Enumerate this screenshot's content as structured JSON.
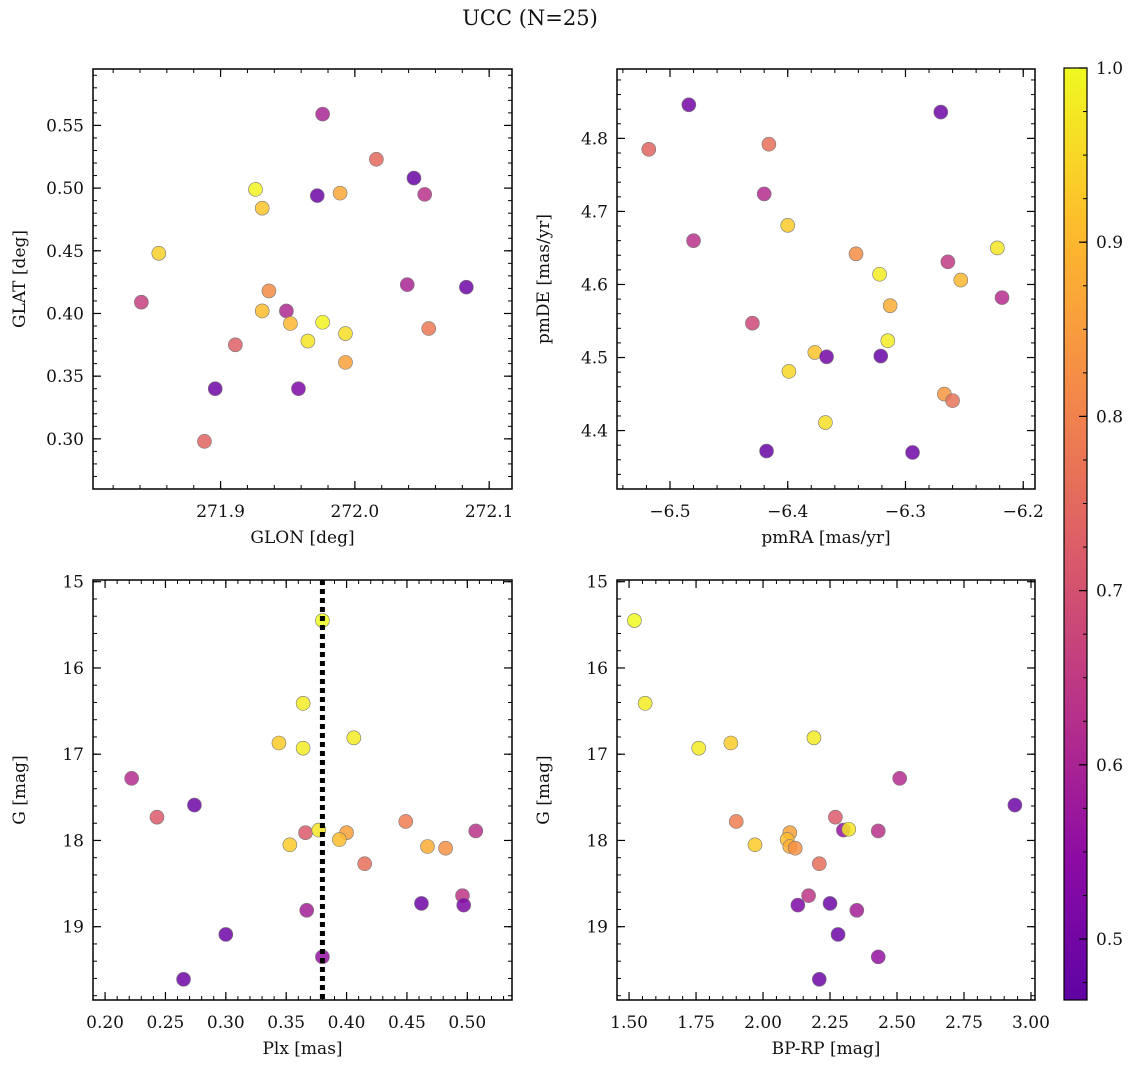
{
  "title": "UCC (N=25)",
  "colorbar": {
    "range": [
      0.465,
      1.0
    ],
    "ticks": [
      0.5,
      0.6,
      0.7,
      0.8,
      0.9,
      1.0
    ],
    "tick_labels": [
      "0.5",
      "0.6",
      "0.7",
      "0.8",
      "0.9",
      "1.0"
    ],
    "colormap": "plasma"
  },
  "chart_data": [
    {
      "type": "scatter",
      "xlabel": "GLON [deg]",
      "ylabel": "GLAT [deg]",
      "xlim": [
        271.805,
        272.117
      ],
      "ylim": [
        0.26,
        0.595
      ],
      "x_ticks": [
        271.9,
        272.0,
        272.1
      ],
      "x_tick_labels": [
        "271.9",
        "272.0",
        "272.1"
      ],
      "y_ticks": [
        0.3,
        0.35,
        0.4,
        0.45,
        0.5,
        0.55
      ],
      "y_tick_labels": [
        "0.30",
        "0.35",
        "0.40",
        "0.45",
        "0.50",
        "0.55"
      ],
      "points": [
        {
          "x": 271.926,
          "y": 0.499,
          "c": 0.99
        },
        {
          "x": 271.931,
          "y": 0.484,
          "c": 0.92
        },
        {
          "x": 271.854,
          "y": 0.448,
          "c": 0.94
        },
        {
          "x": 271.976,
          "y": 0.559,
          "c": 0.6
        },
        {
          "x": 271.972,
          "y": 0.494,
          "c": 0.49
        },
        {
          "x": 271.989,
          "y": 0.496,
          "c": 0.87
        },
        {
          "x": 272.016,
          "y": 0.523,
          "c": 0.75
        },
        {
          "x": 272.044,
          "y": 0.508,
          "c": 0.48
        },
        {
          "x": 272.052,
          "y": 0.495,
          "c": 0.63
        },
        {
          "x": 271.841,
          "y": 0.409,
          "c": 0.66
        },
        {
          "x": 271.936,
          "y": 0.418,
          "c": 0.82
        },
        {
          "x": 271.949,
          "y": 0.402,
          "c": 0.61
        },
        {
          "x": 271.931,
          "y": 0.402,
          "c": 0.91
        },
        {
          "x": 271.952,
          "y": 0.392,
          "c": 0.9
        },
        {
          "x": 271.976,
          "y": 0.393,
          "c": 0.99
        },
        {
          "x": 271.993,
          "y": 0.384,
          "c": 0.96
        },
        {
          "x": 271.965,
          "y": 0.378,
          "c": 0.97
        },
        {
          "x": 272.039,
          "y": 0.423,
          "c": 0.6
        },
        {
          "x": 272.083,
          "y": 0.421,
          "c": 0.49
        },
        {
          "x": 272.055,
          "y": 0.388,
          "c": 0.78
        },
        {
          "x": 271.911,
          "y": 0.375,
          "c": 0.73
        },
        {
          "x": 271.993,
          "y": 0.361,
          "c": 0.86
        },
        {
          "x": 271.896,
          "y": 0.34,
          "c": 0.49
        },
        {
          "x": 271.958,
          "y": 0.34,
          "c": 0.52
        },
        {
          "x": 271.888,
          "y": 0.298,
          "c": 0.74
        }
      ]
    },
    {
      "type": "scatter",
      "xlabel": "pmRA [mas/yr]",
      "ylabel": "pmDE [mas/yr]",
      "xlim": [
        -6.545,
        -6.19
      ],
      "ylim": [
        4.32,
        4.895
      ],
      "x_ticks": [
        -6.5,
        -6.4,
        -6.3,
        -6.2
      ],
      "x_tick_labels": [
        "−6.5",
        "−6.4",
        "−6.3",
        "−6.2"
      ],
      "y_ticks": [
        4.4,
        4.5,
        4.6,
        4.7,
        4.8
      ],
      "y_tick_labels": [
        "4.4",
        "4.5",
        "4.6",
        "4.7",
        "4.8"
      ],
      "points": [
        {
          "x": -6.484,
          "y": 4.846,
          "c": 0.5
        },
        {
          "x": -6.27,
          "y": 4.836,
          "c": 0.49
        },
        {
          "x": -6.518,
          "y": 4.785,
          "c": 0.74
        },
        {
          "x": -6.416,
          "y": 4.792,
          "c": 0.76
        },
        {
          "x": -6.42,
          "y": 4.724,
          "c": 0.62
        },
        {
          "x": -6.4,
          "y": 4.681,
          "c": 0.93
        },
        {
          "x": -6.48,
          "y": 4.66,
          "c": 0.63
        },
        {
          "x": -6.342,
          "y": 4.642,
          "c": 0.82
        },
        {
          "x": -6.322,
          "y": 4.614,
          "c": 0.98
        },
        {
          "x": -6.264,
          "y": 4.631,
          "c": 0.65
        },
        {
          "x": -6.222,
          "y": 4.65,
          "c": 0.97
        },
        {
          "x": -6.253,
          "y": 4.606,
          "c": 0.9
        },
        {
          "x": -6.218,
          "y": 4.582,
          "c": 0.62
        },
        {
          "x": -6.313,
          "y": 4.571,
          "c": 0.88
        },
        {
          "x": -6.43,
          "y": 4.547,
          "c": 0.68
        },
        {
          "x": -6.315,
          "y": 4.523,
          "c": 0.98
        },
        {
          "x": -6.377,
          "y": 4.507,
          "c": 0.92
        },
        {
          "x": -6.367,
          "y": 4.501,
          "c": 0.5
        },
        {
          "x": -6.321,
          "y": 4.502,
          "c": 0.48
        },
        {
          "x": -6.399,
          "y": 4.481,
          "c": 0.95
        },
        {
          "x": -6.267,
          "y": 4.45,
          "c": 0.84
        },
        {
          "x": -6.26,
          "y": 4.441,
          "c": 0.77
        },
        {
          "x": -6.368,
          "y": 4.411,
          "c": 0.96
        },
        {
          "x": -6.418,
          "y": 4.372,
          "c": 0.48
        },
        {
          "x": -6.294,
          "y": 4.37,
          "c": 0.49
        }
      ]
    },
    {
      "type": "scatter",
      "xlabel": "Plx [mas]",
      "ylabel": "G [mag]",
      "xlim": [
        0.19,
        0.537
      ],
      "ylim": [
        19.85,
        14.98
      ],
      "y_inverted": true,
      "x_ticks": [
        0.2,
        0.25,
        0.3,
        0.35,
        0.4,
        0.45,
        0.5
      ],
      "x_tick_labels": [
        "0.20",
        "0.25",
        "0.30",
        "0.35",
        "0.40",
        "0.45",
        "0.50"
      ],
      "y_ticks": [
        15,
        16,
        17,
        18,
        19
      ],
      "y_tick_labels": [
        "15",
        "16",
        "17",
        "18",
        "19"
      ],
      "vline": {
        "x": 0.38,
        "style": "dotted",
        "color": "#000000"
      },
      "points": [
        {
          "x": 0.38,
          "y": 15.45,
          "c": 1.0
        },
        {
          "x": 0.364,
          "y": 16.41,
          "c": 0.98
        },
        {
          "x": 0.406,
          "y": 16.81,
          "c": 0.98
        },
        {
          "x": 0.344,
          "y": 16.87,
          "c": 0.93
        },
        {
          "x": 0.364,
          "y": 16.93,
          "c": 0.98
        },
        {
          "x": 0.222,
          "y": 17.28,
          "c": 0.62
        },
        {
          "x": 0.274,
          "y": 17.59,
          "c": 0.49
        },
        {
          "x": 0.243,
          "y": 17.73,
          "c": 0.72
        },
        {
          "x": 0.449,
          "y": 17.78,
          "c": 0.79
        },
        {
          "x": 0.507,
          "y": 17.89,
          "c": 0.63
        },
        {
          "x": 0.366,
          "y": 17.91,
          "c": 0.72
        },
        {
          "x": 0.377,
          "y": 17.88,
          "c": 0.97
        },
        {
          "x": 0.4,
          "y": 17.91,
          "c": 0.86
        },
        {
          "x": 0.394,
          "y": 17.99,
          "c": 0.91
        },
        {
          "x": 0.353,
          "y": 18.05,
          "c": 0.93
        },
        {
          "x": 0.467,
          "y": 18.07,
          "c": 0.88
        },
        {
          "x": 0.482,
          "y": 18.09,
          "c": 0.83
        },
        {
          "x": 0.415,
          "y": 18.27,
          "c": 0.76
        },
        {
          "x": 0.496,
          "y": 18.64,
          "c": 0.64
        },
        {
          "x": 0.462,
          "y": 18.73,
          "c": 0.49
        },
        {
          "x": 0.497,
          "y": 18.75,
          "c": 0.52
        },
        {
          "x": 0.367,
          "y": 18.81,
          "c": 0.59
        },
        {
          "x": 0.3,
          "y": 19.09,
          "c": 0.49
        },
        {
          "x": 0.38,
          "y": 19.35,
          "c": 0.56
        },
        {
          "x": 0.265,
          "y": 19.61,
          "c": 0.49
        }
      ]
    },
    {
      "type": "scatter",
      "xlabel": "BP-RP [mag]",
      "ylabel": "G [mag]",
      "xlim": [
        1.455,
        3.015
      ],
      "ylim": [
        19.85,
        14.98
      ],
      "y_inverted": true,
      "x_ticks": [
        1.5,
        1.75,
        2.0,
        2.25,
        2.5,
        2.75,
        3.0
      ],
      "x_tick_labels": [
        "1.50",
        "1.75",
        "2.00",
        "2.25",
        "2.50",
        "2.75",
        "3.00"
      ],
      "y_ticks": [
        15,
        16,
        17,
        18,
        19
      ],
      "y_tick_labels": [
        "15",
        "16",
        "17",
        "18",
        "19"
      ],
      "points": [
        {
          "x": 1.52,
          "y": 15.45,
          "c": 1.0
        },
        {
          "x": 1.56,
          "y": 16.41,
          "c": 0.98
        },
        {
          "x": 2.19,
          "y": 16.81,
          "c": 0.98
        },
        {
          "x": 1.76,
          "y": 16.93,
          "c": 0.98
        },
        {
          "x": 1.88,
          "y": 16.87,
          "c": 0.93
        },
        {
          "x": 2.51,
          "y": 17.28,
          "c": 0.62
        },
        {
          "x": 2.94,
          "y": 17.59,
          "c": 0.49
        },
        {
          "x": 2.27,
          "y": 17.73,
          "c": 0.72
        },
        {
          "x": 1.9,
          "y": 17.78,
          "c": 0.79
        },
        {
          "x": 2.43,
          "y": 17.89,
          "c": 0.63
        },
        {
          "x": 2.3,
          "y": 17.88,
          "c": 0.56
        },
        {
          "x": 2.32,
          "y": 17.87,
          "c": 0.97
        },
        {
          "x": 2.1,
          "y": 17.91,
          "c": 0.86
        },
        {
          "x": 2.09,
          "y": 17.99,
          "c": 0.91
        },
        {
          "x": 1.97,
          "y": 18.05,
          "c": 0.93
        },
        {
          "x": 2.1,
          "y": 18.07,
          "c": 0.88
        },
        {
          "x": 2.12,
          "y": 18.09,
          "c": 0.83
        },
        {
          "x": 2.21,
          "y": 18.27,
          "c": 0.76
        },
        {
          "x": 2.17,
          "y": 18.64,
          "c": 0.64
        },
        {
          "x": 2.25,
          "y": 18.73,
          "c": 0.49
        },
        {
          "x": 2.13,
          "y": 18.75,
          "c": 0.52
        },
        {
          "x": 2.35,
          "y": 18.81,
          "c": 0.59
        },
        {
          "x": 2.28,
          "y": 19.09,
          "c": 0.49
        },
        {
          "x": 2.43,
          "y": 19.35,
          "c": 0.56
        },
        {
          "x": 2.21,
          "y": 19.61,
          "c": 0.49
        }
      ]
    }
  ]
}
